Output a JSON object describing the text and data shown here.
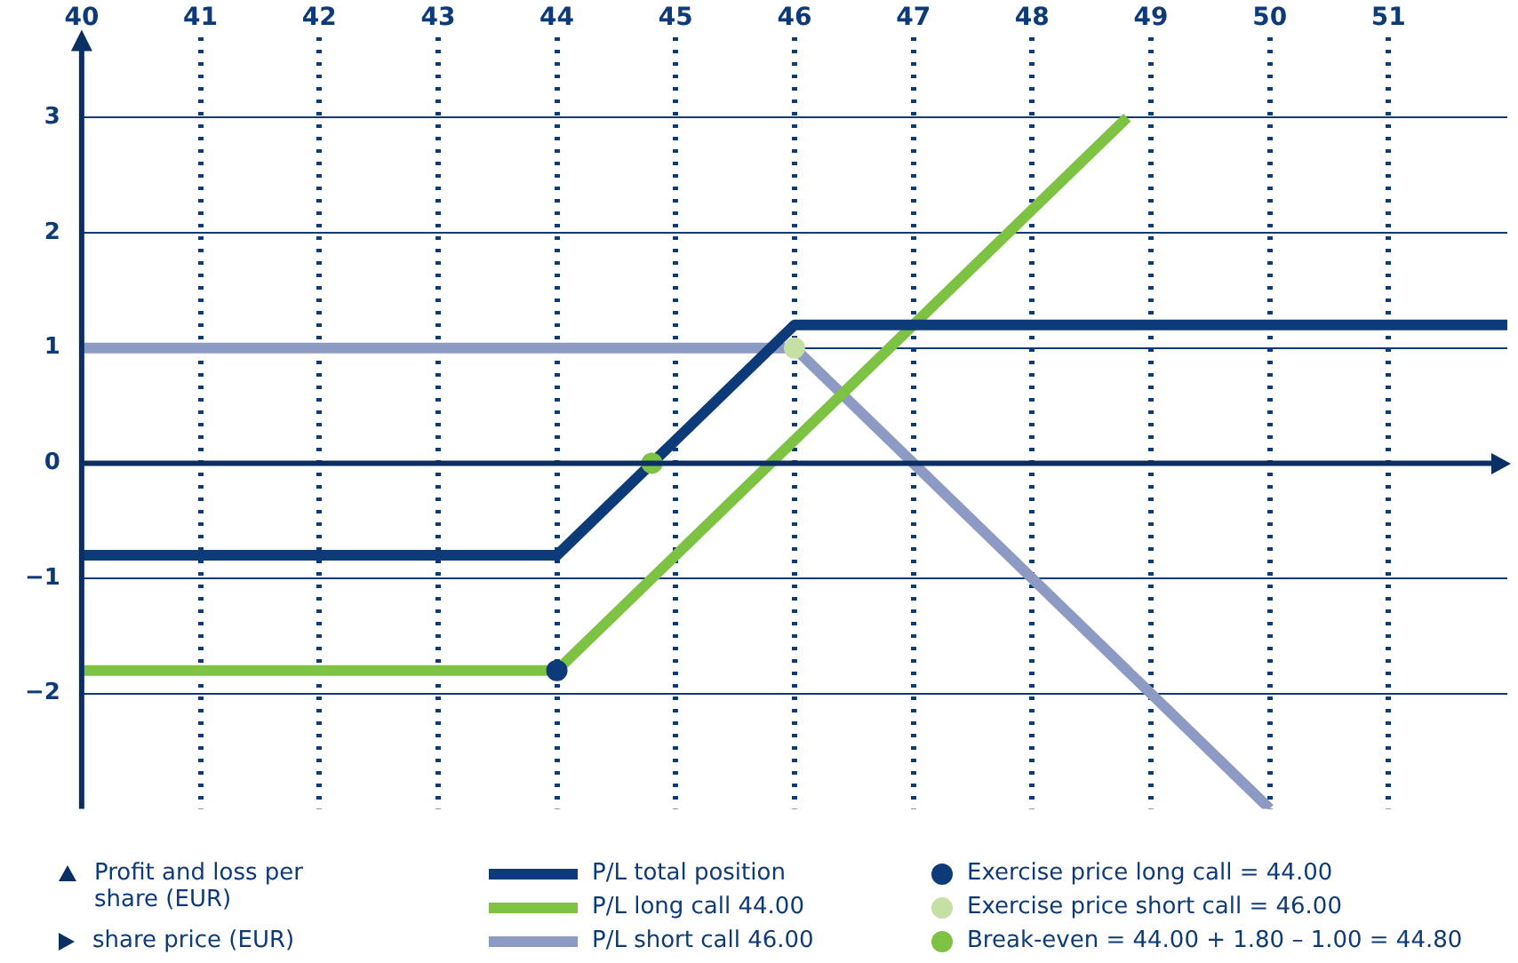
{
  "chart_data": {
    "type": "line",
    "annotations": [
      "Profit and loss per share (EUR)",
      "share price (EUR)"
    ],
    "ref_lines": [
      {
        "axis": "y",
        "value": 0,
        "color": "#0a2f63"
      }
    ],
    "xlim": [
      40,
      52
    ],
    "xticks": [
      40,
      41,
      42,
      43,
      44,
      45,
      46,
      47,
      48,
      49,
      50,
      51
    ],
    "ylim": [
      -3,
      3.7
    ],
    "yticks": [
      {
        "value": -2,
        "label": "−2"
      },
      {
        "value": -1,
        "label": "−1"
      },
      0,
      1,
      2,
      3
    ],
    "grid": true,
    "legend": "bottom",
    "series": [
      {
        "name": "P/L total position",
        "color": "#0d3a78",
        "x": [
          40,
          44,
          46,
          52
        ],
        "values": [
          -0.8,
          -0.8,
          1.2,
          1.2
        ]
      },
      {
        "name": "P/L long call 44.00",
        "color": "#7dc242",
        "x": [
          40,
          44,
          48.8
        ],
        "values": [
          -1.8,
          -1.8,
          3
        ]
      },
      {
        "name": "P/L short call 46.00",
        "color": "#8d9ac4",
        "x": [
          40,
          46,
          50
        ],
        "values": [
          1,
          1,
          -3
        ]
      },
      {
        "name": "Exercise price long call = 44.00",
        "type": "scatter",
        "marker": "circle",
        "color": "#0d3a78",
        "x": [
          44
        ],
        "values": [
          -1.8
        ]
      },
      {
        "name": "Exercise price short call = 46.00",
        "type": "scatter",
        "marker": "circle",
        "color": "#c5e0a5",
        "x": [
          46
        ],
        "values": [
          1
        ]
      },
      {
        "name": "Break-even = 44.00 + 1.80 – 1.00 = 44.80",
        "type": "scatter",
        "marker": "circle",
        "color": "#7dc242",
        "x": [
          44.8
        ],
        "values": [
          0
        ]
      }
    ]
  }
}
